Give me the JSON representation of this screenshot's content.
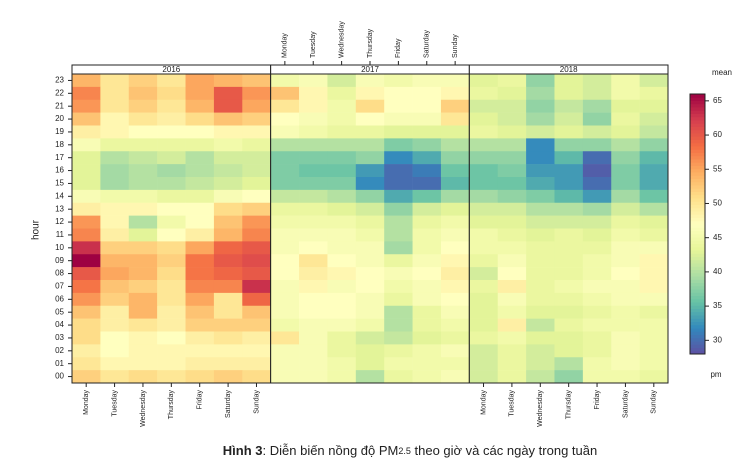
{
  "chart_data": {
    "type": "heatmap",
    "y_label": "hour",
    "colorbar_title": "mean",
    "colorbar_footer": "pm",
    "caption": {
      "label": "Hình 3",
      "text_before": ": Diễn biến nồng độ PM",
      "subscript": "2.5",
      "text_after": " theo giờ và các ngày trong tuần"
    },
    "days": [
      "Monday",
      "Tuesday",
      "Wednesday",
      "Thursday",
      "Friday",
      "Saturday",
      "Sunday"
    ],
    "hours": [
      "23",
      "22",
      "21",
      "20",
      "19",
      "18",
      "17",
      "16",
      "15",
      "14",
      "13",
      "12",
      "11",
      "10",
      "09",
      "08",
      "07",
      "06",
      "05",
      "04",
      "03",
      "02",
      "01",
      "00"
    ],
    "zlim": [
      28,
      66
    ],
    "zticks": [
      30,
      35,
      40,
      45,
      50,
      55,
      60,
      65
    ],
    "colors": [
      "#5e4fa2",
      "#3288bd",
      "#66c2a5",
      "#abdda4",
      "#e6f598",
      "#ffffbf",
      "#fee08b",
      "#fdae61",
      "#f46d43",
      "#d53e4f",
      "#9e0142"
    ],
    "panels": [
      {
        "name": "2016",
        "values": [
          [
            54,
            50,
            52,
            50,
            55,
            54,
            53
          ],
          [
            57,
            50,
            53,
            51,
            55,
            60,
            56
          ],
          [
            56,
            50,
            52,
            50,
            54,
            60,
            55
          ],
          [
            53,
            48,
            50,
            49,
            51,
            53,
            52
          ],
          [
            49,
            48,
            47,
            47,
            47,
            48,
            48
          ],
          [
            46,
            44,
            44,
            44,
            44,
            45,
            44
          ],
          [
            43,
            40,
            41,
            42,
            40,
            42,
            42
          ],
          [
            43,
            39,
            40,
            39,
            40,
            41,
            42
          ],
          [
            43,
            39,
            40,
            40,
            41,
            42,
            43
          ],
          [
            46,
            45,
            45,
            44,
            44,
            46,
            47
          ],
          [
            49,
            48,
            48,
            47,
            47,
            51,
            52
          ],
          [
            56,
            48,
            40,
            45,
            47,
            53,
            56
          ],
          [
            57,
            49,
            43,
            47,
            49,
            54,
            57
          ],
          [
            63,
            52,
            52,
            51,
            55,
            59,
            60
          ],
          [
            66,
            54,
            54,
            52,
            58,
            60,
            61
          ],
          [
            60,
            55,
            54,
            51,
            58,
            59,
            60
          ],
          [
            58,
            53,
            52,
            50,
            57,
            57,
            63
          ],
          [
            56,
            52,
            54,
            50,
            55,
            50,
            59
          ],
          [
            53,
            49,
            54,
            49,
            53,
            50,
            53
          ],
          [
            51,
            49,
            50,
            49,
            52,
            52,
            52
          ],
          [
            51,
            47,
            48,
            47,
            49,
            50,
            49
          ],
          [
            49,
            47,
            48,
            48,
            48,
            48,
            48
          ],
          [
            50,
            48,
            48,
            48,
            49,
            49,
            49
          ],
          [
            52,
            50,
            51,
            50,
            51,
            52,
            51
          ]
        ]
      },
      {
        "name": "2017",
        "values": [
          [
            45,
            46,
            42,
            46,
            45,
            46,
            46
          ],
          [
            53,
            48,
            44,
            48,
            47,
            47,
            48
          ],
          [
            50,
            48,
            45,
            51,
            47,
            47,
            52
          ],
          [
            47,
            46,
            45,
            47,
            46,
            46,
            50
          ],
          [
            46,
            45,
            44,
            44,
            43,
            43,
            43
          ],
          [
            40,
            40,
            40,
            40,
            37,
            38,
            40
          ],
          [
            37,
            37,
            37,
            38,
            32,
            34,
            38
          ],
          [
            37,
            36,
            36,
            33,
            30,
            31,
            36
          ],
          [
            37,
            37,
            37,
            32,
            30,
            30,
            35
          ],
          [
            41,
            41,
            40,
            38,
            34,
            36,
            39
          ],
          [
            44,
            44,
            43,
            42,
            38,
            42,
            43
          ],
          [
            45,
            45,
            45,
            44,
            40,
            44,
            45
          ],
          [
            46,
            46,
            46,
            45,
            40,
            45,
            46
          ],
          [
            46,
            47,
            46,
            46,
            39,
            45,
            47
          ],
          [
            47,
            50,
            47,
            46,
            44,
            46,
            48
          ],
          [
            47,
            49,
            48,
            47,
            46,
            47,
            49
          ],
          [
            46,
            48,
            46,
            47,
            45,
            46,
            48
          ],
          [
            46,
            47,
            47,
            46,
            44,
            46,
            47
          ],
          [
            46,
            47,
            47,
            46,
            40,
            44,
            46
          ],
          [
            45,
            46,
            46,
            45,
            40,
            44,
            45
          ],
          [
            50,
            46,
            44,
            42,
            41,
            43,
            44
          ],
          [
            46,
            46,
            44,
            43,
            44,
            45,
            46
          ],
          [
            46,
            46,
            45,
            43,
            45,
            45,
            45
          ],
          [
            46,
            46,
            45,
            40,
            44,
            45,
            46
          ]
        ]
      },
      {
        "name": "2018",
        "values": [
          [
            43,
            44,
            38,
            43,
            42,
            45,
            42
          ],
          [
            44,
            43,
            39,
            43,
            42,
            45,
            44
          ],
          [
            42,
            42,
            38,
            41,
            39,
            43,
            43
          ],
          [
            43,
            42,
            39,
            42,
            38,
            44,
            42
          ],
          [
            44,
            43,
            42,
            43,
            42,
            43,
            41
          ],
          [
            40,
            40,
            32,
            38,
            38,
            40,
            38
          ],
          [
            38,
            38,
            32,
            35,
            30,
            38,
            35
          ],
          [
            36,
            37,
            33,
            33,
            29,
            37,
            34
          ],
          [
            36,
            36,
            34,
            33,
            30,
            37,
            34
          ],
          [
            39,
            38,
            37,
            35,
            33,
            39,
            36
          ],
          [
            42,
            42,
            40,
            40,
            39,
            42,
            40
          ],
          [
            43,
            43,
            42,
            42,
            42,
            44,
            43
          ],
          [
            45,
            44,
            43,
            44,
            43,
            45,
            44
          ],
          [
            45,
            45,
            44,
            44,
            44,
            46,
            46
          ],
          [
            44,
            46,
            44,
            44,
            45,
            46,
            48
          ],
          [
            42,
            47,
            44,
            44,
            45,
            47,
            48
          ],
          [
            44,
            49,
            44,
            45,
            46,
            46,
            48
          ],
          [
            43,
            46,
            44,
            44,
            45,
            46,
            46
          ],
          [
            43,
            45,
            43,
            43,
            44,
            45,
            44
          ],
          [
            43,
            49,
            41,
            44,
            45,
            45,
            45
          ],
          [
            44,
            45,
            43,
            43,
            44,
            46,
            45
          ],
          [
            42,
            44,
            42,
            43,
            44,
            46,
            45
          ],
          [
            42,
            44,
            42,
            40,
            45,
            46,
            45
          ],
          [
            42,
            44,
            41,
            38,
            45,
            45,
            44
          ]
        ]
      }
    ]
  }
}
